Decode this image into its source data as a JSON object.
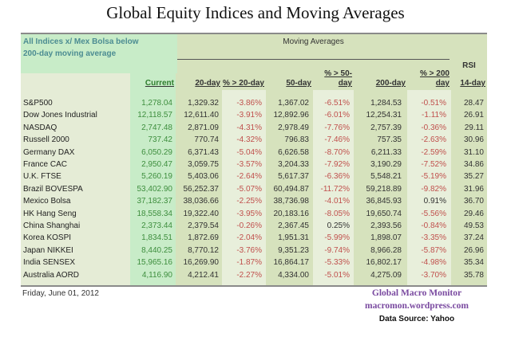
{
  "title": "Global Equity Indices and Moving Averages",
  "header": {
    "note_line1": "All Indices x/ Mex Bolsa below",
    "note_line2": "200-day moving average",
    "moving_averages": "Moving Averages",
    "rsi": "RSI",
    "columns": [
      "Current",
      "20-day",
      "% > 20-day",
      "50-day",
      "% > 50-day",
      "200-day",
      "% > 200 day",
      "14-day"
    ]
  },
  "rows": [
    [
      "S&P500",
      "1,278.04",
      "1,329.32",
      "-3.86%",
      "1,367.02",
      "-6.51%",
      "1,284.53",
      "-0.51%",
      "28.47"
    ],
    [
      "Dow Jones Industrial",
      "12,118.57",
      "12,611.40",
      "-3.91%",
      "12,892.96",
      "-6.01%",
      "12,254.31",
      "-1.11%",
      "26.91"
    ],
    [
      "NASDAQ",
      "2,747.48",
      "2,871.09",
      "-4.31%",
      "2,978.49",
      "-7.76%",
      "2,757.39",
      "-0.36%",
      "29.11"
    ],
    [
      "Russell 2000",
      "737.42",
      "770.74",
      "-4.32%",
      "796.83",
      "-7.46%",
      "757.35",
      "-2.63%",
      "30.96"
    ],
    [
      "Germany DAX",
      "6,050.29",
      "6,371.43",
      "-5.04%",
      "6,626.58",
      "-8.70%",
      "6,211.33",
      "-2.59%",
      "31.10"
    ],
    [
      "France CAC",
      "2,950.47",
      "3,059.75",
      "-3.57%",
      "3,204.33",
      "-7.92%",
      "3,190.29",
      "-7.52%",
      "34.86"
    ],
    [
      "U.K. FTSE",
      "5,260.19",
      "5,403.06",
      "-2.64%",
      "5,617.37",
      "-6.36%",
      "5,548.21",
      "-5.19%",
      "35.27"
    ],
    [
      "Brazil BOVESPA",
      "53,402.90",
      "56,252.37",
      "-5.07%",
      "60,494.87",
      "-11.72%",
      "59,218.89",
      "-9.82%",
      "31.96"
    ],
    [
      "Mexico Bolsa",
      "37,182.37",
      "38,036.66",
      "-2.25%",
      "38,736.98",
      "-4.01%",
      "36,845.93",
      "0.91%",
      "36.70"
    ],
    [
      "HK  Hang Seng",
      "18,558.34",
      "19,322.40",
      "-3.95%",
      "20,183.16",
      "-8.05%",
      "19,650.74",
      "-5.56%",
      "29.46"
    ],
    [
      "China Shanghai",
      "2,373.44",
      "2,379.54",
      "-0.26%",
      "2,367.45",
      "0.25%",
      "2,393.56",
      "-0.84%",
      "49.53"
    ],
    [
      "Korea KOSPI",
      "1,834.51",
      "1,872.69",
      "-2.04%",
      "1,951.31",
      "-5.99%",
      "1,898.07",
      "-3.35%",
      "37.24"
    ],
    [
      "Japan NIKKEI",
      "8,440.25",
      "8,770.12",
      "-3.76%",
      "9,351.23",
      "-9.74%",
      "8,966.28",
      "-5.87%",
      "26.96"
    ],
    [
      "India SENSEX",
      "15,965.16",
      "16,269.90",
      "-1.87%",
      "16,864.17",
      "-5.33%",
      "16,802.17",
      "-4.98%",
      "35.34"
    ],
    [
      "Australia AORD",
      "4,116.90",
      "4,212.41",
      "-2.27%",
      "4,334.00",
      "-5.01%",
      "4,275.09",
      "-3.70%",
      "35.78"
    ]
  ],
  "footer": {
    "date": "Friday, June 01, 2012",
    "credit1": "Global Macro Monitor",
    "credit2": "macromon.wordpress.com",
    "source": "Data Source: Yahoo"
  },
  "colors": {
    "positive": "#3e8e3e",
    "negative": "#c0504d",
    "credit": "#7a4aa0"
  }
}
